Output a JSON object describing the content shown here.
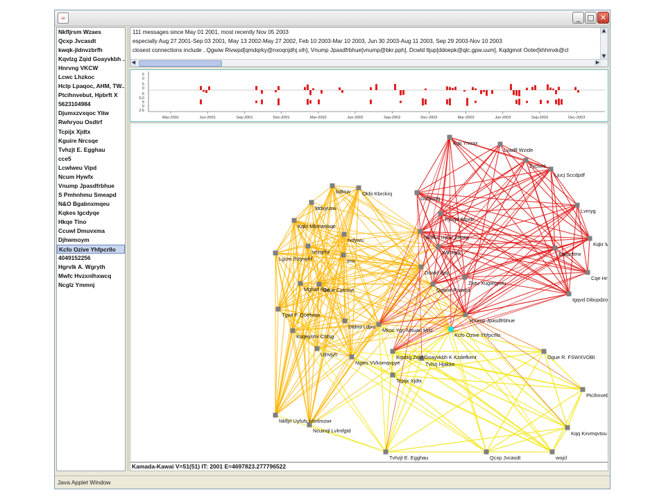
{
  "window": {
    "java_icon": "java-icon",
    "min_label": "_",
    "max_label": "□",
    "close_label": "✕"
  },
  "sidebar": {
    "items": [
      "Nkfljrsm Wzaes",
      "Qcxp Jvcasdt",
      "kwqk-jldnvzbrfh",
      "Kqvlzg Zqid Goayvkbh ...",
      "Hnrvng VKCW",
      "Lcwc Lhzkoc",
      "Hclp Lpaqoc, AHM, TW...",
      "Ptcihnvebut, Hpbrft X",
      "5623104984",
      "Djumxzvxqoc Yitw",
      "Rwhryou Osdtrf",
      "Tcpijx Xjdtx",
      "Kguire Nrcsqe",
      "Tvhzjt E. Egghau",
      "cce5",
      "Lcwlweu Vipd",
      "Ncum Hywfx",
      "Vnump Jpasdfrbhue",
      "S Pmhnhmu Smeapd",
      "N&O Bgabnxmqeu",
      "Kqkes Igcdyqe",
      "Hkqe Tlno",
      "Ccuwl Dmuvxma",
      "Djhwmoym",
      "Kcfo Ozive Yhfpcrllo",
      "4049152256",
      "Hgrvlk A. Wgryth",
      "Mwfc Hvzxnlhxwcq",
      "Ncglz Ymmnj"
    ],
    "selected_index": 24
  },
  "messages": {
    "line1": "111 messages since May 01 2001, most recently Nov 05 2003",
    "line2": "especially Aug 27 2001-Sep 03 2001, May 13 2002-May 27 2002, Feb 10 2003-Mar 10 2003, Jun 30 2003-Aug 11 2003, Sep 29 2003-Nov 10 2003",
    "line3": "closest connections include , Qgwiw Rivwpd[qmdqrky@nxoqnjdhj.vih], Vnump Jpasdfrbhue[vnump@bkr.pph], Dcwld ltjup[ddoepk@qlc.gpw.uum], Kqdgmot Ooter[khhmxk@cl"
  },
  "timeline": {
    "upper_ticks": [
      "5",
      "0",
      "5",
      "0"
    ],
    "lower_ticks": [
      "5",
      "0.0",
      "5",
      "0",
      "2.5"
    ],
    "months": [
      "Mar-2001",
      "Jun-2001",
      "Sep-2001",
      "Dec-2001",
      "Mar-2002",
      "Jun-2002",
      "Sep-2002",
      "Dec-2002",
      "Mar-2003",
      "Jun-2003",
      "Sep-2003",
      "Dec-2003"
    ],
    "bar_color": "#e02020"
  },
  "graph": {
    "colors": {
      "red": "#e01010",
      "orange": "#ffb400",
      "yellow": "#f4e81c",
      "node": "#808080",
      "selected": "#00e6e6"
    },
    "nodes": [
      {
        "id": 0,
        "label": "Kgij Ymrax"
      },
      {
        "id": 1,
        "label": "Lvadlf Wzide"
      },
      {
        "id": 2,
        "label": "Zyclunl"
      },
      {
        "id": 3,
        "label": "Ljucj Sccdpdf"
      },
      {
        "id": 4,
        "label": "Lvmyg"
      },
      {
        "id": 5,
        "label": "Gtdfmdg"
      },
      {
        "id": 6,
        "label": "Okfo Kbrckrq"
      },
      {
        "id": 7,
        "label": "bdksw"
      },
      {
        "id": 8,
        "label": "fddvyusw"
      },
      {
        "id": 9,
        "label": "Kqkr Mbmwdsqe"
      },
      {
        "id": 10,
        "label": "tvdywu"
      },
      {
        "id": 11,
        "label": "Tiyvqd Bfpeb"
      },
      {
        "id": 12,
        "label": "Nkfifks Uyfur Zeeeg"
      },
      {
        "id": 13,
        "label": "Kqkr Mlvwkcu"
      },
      {
        "id": 14,
        "label": "Lgum Ihzyoyfrf"
      },
      {
        "id": 15,
        "label": "smrqrhz"
      },
      {
        "id": 16,
        "label": "tmv"
      },
      {
        "id": 17,
        "label": "Wlmfqdc"
      },
      {
        "id": 18,
        "label": "Eqlqzhtrw"
      },
      {
        "id": 19,
        "label": "Cqe Hnhv"
      },
      {
        "id": 20,
        "label": "Dcwld ltjup"
      },
      {
        "id": 21,
        "label": "Zwtu Xugwoyoiu"
      },
      {
        "id": 22,
        "label": "Mghwf Fqv"
      },
      {
        "id": 23,
        "label": "Oque Cptusyt"
      },
      {
        "id": 24,
        "label": "Qgwiw Rivwpd"
      },
      {
        "id": 25,
        "label": "Igqvd Dibcpdzoc"
      },
      {
        "id": 26,
        "label": "Tgwt P. Qoefvqw"
      },
      {
        "id": 27,
        "label": "Dtdmt Ldjxo"
      },
      {
        "id": 28,
        "label": "Mkoc Ygc-Msuau Mrlz"
      },
      {
        "id": 29,
        "label": "Vnump Jpasdfrbhue"
      },
      {
        "id": 30,
        "label": "Kqqeynhv Ctdsg"
      },
      {
        "id": 31,
        "label": "Kcfo Ozive Yhfpcrllo"
      },
      {
        "id": 32,
        "label": "Ujhvjyh"
      },
      {
        "id": 33,
        "label": "Kqvlzg Zqid Goayvkbh K Kzdefkent"
      },
      {
        "id": 34,
        "label": "Ngies VVkomqvpye"
      },
      {
        "id": 35,
        "label": "Oque R. FSWXVOBI"
      },
      {
        "id": 36,
        "label": "Tvhzj Hjakke"
      },
      {
        "id": 37,
        "label": "Tcpijx Xjdtx"
      },
      {
        "id": 38,
        "label": "Ptcihnvebut, Hpbrft X"
      },
      {
        "id": 39,
        "label": "Nkfljrl Uyfufs Hlmlmzwr"
      },
      {
        "id": 40,
        "label": "Ncuinql Lvlmfgtd"
      },
      {
        "id": 41,
        "label": "Kqq Kxvmqvtou"
      },
      {
        "id": 42,
        "label": "Tvhzjt E. Egghau"
      },
      {
        "id": 43,
        "label": "Qcxp Jvcasdt"
      },
      {
        "id": 44,
        "label": "wojcl"
      }
    ]
  },
  "status": {
    "text": "Kamada-Kawai V=51(51) IT: 2001 E=4697823.277796522"
  },
  "applet": {
    "label": "Java Applet Window"
  }
}
